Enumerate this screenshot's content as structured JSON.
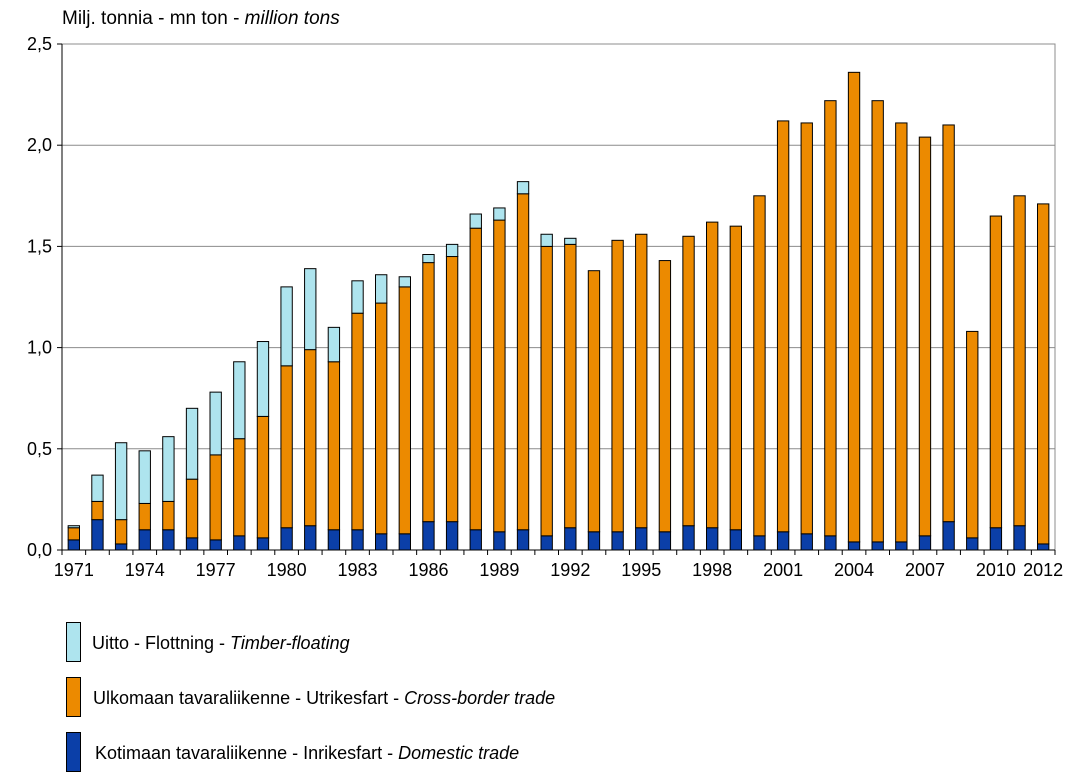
{
  "chart_data": {
    "type": "bar",
    "stacked": true,
    "unit_label": {
      "main": "Milj. tonnia - mn ton - ",
      "italic": "million tons"
    },
    "ylim": [
      0,
      2.5
    ],
    "y_ticks": [
      "0,0",
      "0,5",
      "1,0",
      "1,5",
      "2,0",
      "2,5"
    ],
    "x_tick_labels": [
      "1971",
      "1974",
      "1977",
      "1980",
      "1983",
      "1986",
      "1989",
      "1992",
      "1995",
      "1998",
      "2001",
      "2004",
      "2007",
      "2010",
      "2012"
    ],
    "grid": "horizontal",
    "legend_position": "bottom-left",
    "categories": [
      "1971",
      "1972",
      "1973",
      "1974",
      "1975",
      "1976",
      "1977",
      "1978",
      "1979",
      "1980",
      "1981",
      "1982",
      "1983",
      "1984",
      "1985",
      "1986",
      "1987",
      "1988",
      "1989",
      "1990",
      "1991",
      "1992",
      "1993",
      "1994",
      "1995",
      "1996",
      "1997",
      "1998",
      "1999",
      "2000",
      "2001",
      "2002",
      "2003",
      "2004",
      "2005",
      "2006",
      "2007",
      "2008",
      "2009",
      "2010",
      "2011",
      "2012"
    ],
    "series": [
      {
        "name": "Kotimaan tavaraliikenne - Inrikesfart - ",
        "name_italic": "Domestic trade",
        "color": "#0b3fa8",
        "values": [
          0.05,
          0.15,
          0.03,
          0.1,
          0.1,
          0.06,
          0.05,
          0.07,
          0.06,
          0.11,
          0.12,
          0.1,
          0.1,
          0.08,
          0.08,
          0.14,
          0.14,
          0.1,
          0.09,
          0.1,
          0.07,
          0.11,
          0.09,
          0.09,
          0.11,
          0.09,
          0.12,
          0.11,
          0.1,
          0.07,
          0.09,
          0.08,
          0.07,
          0.04,
          0.04,
          0.04,
          0.07,
          0.14,
          0.06,
          0.11,
          0.12,
          0.03
        ]
      },
      {
        "name": "Ulkomaan tavaraliikenne - Utrikesfart - ",
        "name_italic": "Cross-border trade",
        "color": "#ec8a00",
        "values": [
          0.06,
          0.09,
          0.12,
          0.13,
          0.14,
          0.29,
          0.42,
          0.48,
          0.6,
          0.8,
          0.87,
          0.83,
          1.07,
          1.14,
          1.22,
          1.28,
          1.31,
          1.49,
          1.54,
          1.66,
          1.43,
          1.4,
          1.29,
          1.44,
          1.45,
          1.34,
          1.43,
          1.51,
          1.5,
          1.68,
          2.03,
          2.03,
          2.15,
          2.32,
          2.18,
          2.07,
          1.97,
          1.96,
          1.02,
          1.54,
          1.63,
          1.68
        ]
      },
      {
        "name": "Uitto - Flottning - ",
        "name_italic": "Timber-floating",
        "color": "#aee4ee",
        "values": [
          0.01,
          0.13,
          0.38,
          0.26,
          0.32,
          0.35,
          0.31,
          0.38,
          0.37,
          0.39,
          0.4,
          0.17,
          0.16,
          0.14,
          0.05,
          0.04,
          0.06,
          0.07,
          0.06,
          0.06,
          0.06,
          0.03,
          0,
          0,
          0,
          0,
          0,
          0,
          0,
          0,
          0,
          0,
          0,
          0,
          0,
          0,
          0,
          0,
          0,
          0,
          0,
          0
        ]
      }
    ]
  }
}
